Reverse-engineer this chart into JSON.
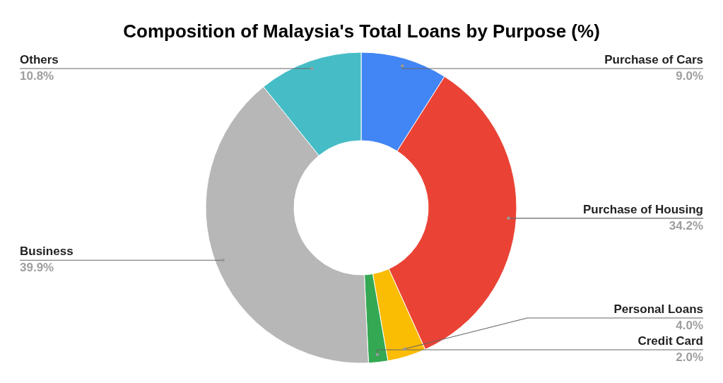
{
  "chart_data": {
    "type": "donut",
    "title": "Composition of Malaysia's Total Loans by Purpose (%)",
    "categories": [
      "Purchase of Cars",
      "Purchase of Housing",
      "Personal Loans",
      "Credit Card",
      "Business",
      "Others"
    ],
    "values": [
      9.0,
      34.2,
      4.0,
      2.0,
      39.9,
      10.8
    ],
    "colors": [
      "#4285f4",
      "#ea4335",
      "#fbbc04",
      "#34a853",
      "#b7b7b7",
      "#46bdc6"
    ],
    "value_labels": [
      "9.0%",
      "34.2%",
      "4.0%",
      "2.0%",
      "39.9%",
      "10.8%"
    ]
  }
}
